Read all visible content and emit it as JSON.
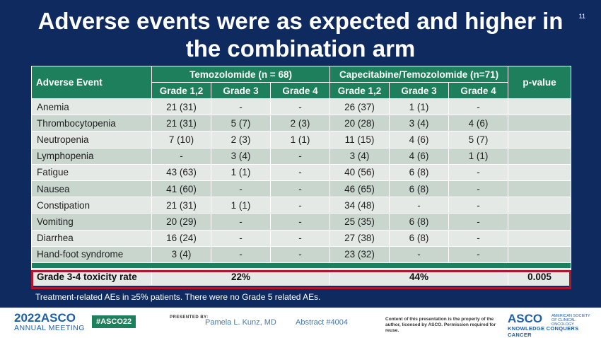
{
  "slide": {
    "title": "Adverse events were as expected and higher in the combination arm",
    "number": "11",
    "footnote": "Treatment-related AEs in ≥5% patients. There were no Grade 5 related AEs."
  },
  "table": {
    "header": {
      "event_col": "Adverse Event",
      "arm1": "Temozolomide (n = 68)",
      "arm2": "Capecitabine/Temozolomide (n=71)",
      "pvalue": "p-value",
      "grades": [
        "Grade 1,2",
        "Grade 3",
        "Grade 4",
        "Grade 1,2",
        "Grade 3",
        "Grade 4"
      ]
    },
    "rows": [
      {
        "event": "Anemia",
        "cells": [
          "21 (31)",
          "-",
          "-",
          "26 (37)",
          "1 (1)",
          "-"
        ],
        "p": ""
      },
      {
        "event": "Thrombocytopenia",
        "cells": [
          "21 (31)",
          "5 (7)",
          "2 (3)",
          "20 (28)",
          "3 (4)",
          "4 (6)"
        ],
        "p": ""
      },
      {
        "event": "Neutropenia",
        "cells": [
          "7 (10)",
          "2 (3)",
          "1 (1)",
          "11 (15)",
          "4 (6)",
          "5 (7)"
        ],
        "p": ""
      },
      {
        "event": "Lymphopenia",
        "cells": [
          "-",
          "3 (4)",
          "-",
          "3 (4)",
          "4 (6)",
          "1 (1)"
        ],
        "p": ""
      },
      {
        "event": "Fatigue",
        "cells": [
          "43 (63)",
          "1 (1)",
          "-",
          "40 (56)",
          "6 (8)",
          "-"
        ],
        "p": ""
      },
      {
        "event": "Nausea",
        "cells": [
          "41 (60)",
          "-",
          "-",
          "46 (65)",
          "6 (8)",
          "-"
        ],
        "p": ""
      },
      {
        "event": "Constipation",
        "cells": [
          "21 (31)",
          "1 (1)",
          "-",
          "34 (48)",
          "-",
          "-"
        ],
        "p": ""
      },
      {
        "event": "Vomiting",
        "cells": [
          "20 (29)",
          "-",
          "-",
          "25 (35)",
          "6 (8)",
          "-"
        ],
        "p": ""
      },
      {
        "event": "Diarrhea",
        "cells": [
          "16 (24)",
          "-",
          "-",
          "27 (38)",
          "6 (8)",
          "-"
        ],
        "p": ""
      },
      {
        "event": "Hand-foot syndrome",
        "cells": [
          "3 (4)",
          "-",
          "-",
          "23 (32)",
          "-",
          "-"
        ],
        "p": ""
      }
    ],
    "summary": {
      "label": "Grade 3-4 toxicity rate",
      "arm1": "22%",
      "arm2": "44%",
      "p": "0.005"
    },
    "colors": {
      "header_green": "#1e7f5c",
      "row_light": "#e4e9e5",
      "row_dark": "#c9d6ce",
      "highlight_red": "#b3152a",
      "slide_navy": "#0e2a5e"
    }
  },
  "footer": {
    "brand_year": "2022",
    "brand_name": "ASCO",
    "brand_sub": "ANNUAL MEETING",
    "hashtag": "#ASCO22",
    "presented_by": "PRESENTED BY:",
    "presenter": "Pamela L. Kunz, MD",
    "abstract": "Abstract #4004",
    "rights": "Content of this presentation is the property of the author, licensed by ASCO. Permission required for reuse.",
    "asco_logo": "ASCO",
    "asco_society": "AMERICAN SOCIETY OF CLINICAL ONCOLOGY",
    "asco_tagline": "KNOWLEDGE CONQUERS CANCER"
  }
}
